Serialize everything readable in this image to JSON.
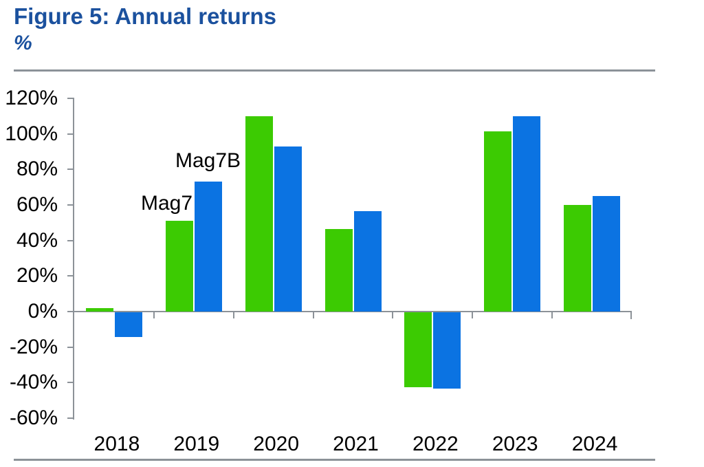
{
  "figure": {
    "title": "Figure 5: Annual returns",
    "subtitle": "%"
  },
  "colors": {
    "title_blue": "#1B519E",
    "mag7_green": "#3CCB02",
    "mag7b_blue": "#0B73E2",
    "rule_gray": "#8C9298",
    "axis_gray": "#8C9298",
    "text_black": "#000000"
  },
  "chart_data": {
    "type": "bar",
    "title": "Figure 5: Annual returns",
    "ylabel": "%",
    "grid": false,
    "legend_position": "inline-labels-near-2019-bars",
    "categories": [
      "2018",
      "2019",
      "2020",
      "2021",
      "2022",
      "2023",
      "2024"
    ],
    "series": [
      {
        "name": "Mag7",
        "color": "#3CCB02",
        "values": [
          2,
          51,
          110,
          46.5,
          -42,
          101.5,
          60
        ]
      },
      {
        "name": "Mag7B",
        "color": "#0B73E2",
        "values": [
          -14,
          73,
          93,
          56.5,
          -43,
          110,
          65
        ]
      }
    ],
    "series_labels": [
      {
        "text": "Mag7"
      },
      {
        "text": "Mag7B"
      }
    ],
    "ylim": [
      -60,
      120
    ],
    "ytick_step": 20,
    "ytick_values": [
      120,
      100,
      80,
      60,
      40,
      20,
      0,
      -20,
      -40,
      -60
    ],
    "ytick_labels": [
      "120%",
      "100%",
      "80%",
      "60%",
      "40%",
      "20%",
      "0%",
      "-20%",
      "-40%",
      "-60%"
    ]
  }
}
